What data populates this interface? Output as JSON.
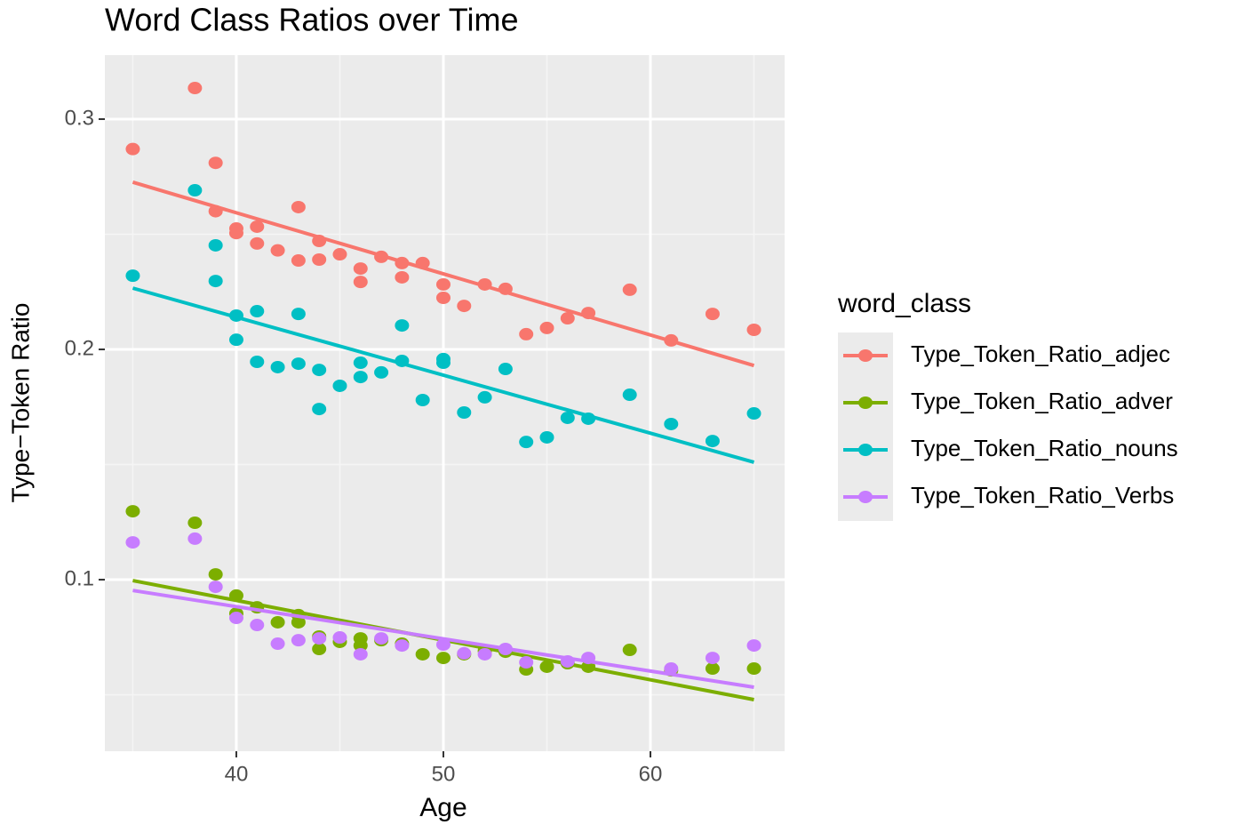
{
  "chart_data": {
    "type": "scatter",
    "title": "Word Class Ratios over Time",
    "x_label": "Age",
    "y_label": "Type−Token Ratio",
    "legend_title": "word_class",
    "legend": "right",
    "grid": true,
    "minor_grid": true,
    "xlim": [
      33.65,
      66.48
    ],
    "xticks": [
      40,
      50,
      60
    ],
    "ylim": [
      0.0255,
      0.3278
    ],
    "yticks": [
      0.1,
      0.2,
      0.3
    ],
    "series": [
      {
        "name": "Type_Token_Ratio_adjec",
        "color": "#F8766D",
        "x": [
          35,
          38,
          39,
          39,
          40,
          40,
          41,
          41,
          42,
          43,
          43,
          44,
          44,
          45,
          46,
          46,
          47,
          48,
          48,
          49,
          50,
          50,
          51,
          52,
          53,
          54,
          55,
          56,
          57,
          59,
          61,
          63,
          65
        ],
        "values": [
          0.287,
          0.3135,
          0.281,
          0.26,
          0.2525,
          0.2505,
          0.2533,
          0.246,
          0.243,
          0.2618,
          0.2386,
          0.2471,
          0.239,
          0.2413,
          0.2351,
          0.2293,
          0.2402,
          0.2375,
          0.2313,
          0.2375,
          0.2282,
          0.2224,
          0.2189,
          0.2282,
          0.2263,
          0.2066,
          0.2093,
          0.2135,
          0.2158,
          0.2259,
          0.2039,
          0.2154,
          0.2085
        ],
        "fit": {
          "x": [
            35,
            65
          ],
          "values": [
            0.2726,
            0.193
          ]
        }
      },
      {
        "name": "Type_Token_Ratio_adver",
        "color": "#7CAE00",
        "x": [
          35,
          38,
          39,
          40,
          40,
          41,
          42,
          43,
          43,
          44,
          44,
          45,
          46,
          46,
          47,
          48,
          49,
          50,
          51,
          52,
          53,
          54,
          55,
          56,
          57,
          59,
          61,
          63,
          65
        ],
        "values": [
          0.1297,
          0.1247,
          0.1023,
          0.0931,
          0.0853,
          0.088,
          0.0815,
          0.0846,
          0.0815,
          0.0753,
          0.0699,
          0.073,
          0.0745,
          0.0714,
          0.0737,
          0.0722,
          0.0676,
          0.066,
          0.0676,
          0.0691,
          0.0687,
          0.061,
          0.0622,
          0.0637,
          0.0622,
          0.0695,
          0.0606,
          0.0614,
          0.0614
        ],
        "fit": {
          "x": [
            35,
            65
          ],
          "values": [
            0.0996,
            0.0479
          ]
        }
      },
      {
        "name": "Type_Token_Ratio_nouns",
        "color": "#00BFC4",
        "x": [
          35,
          38,
          39,
          39,
          40,
          40,
          41,
          41,
          42,
          43,
          43,
          44,
          44,
          45,
          46,
          46,
          47,
          48,
          48,
          49,
          50,
          50,
          51,
          52,
          53,
          54,
          55,
          56,
          57,
          59,
          61,
          63,
          65
        ],
        "values": [
          0.232,
          0.2691,
          0.2452,
          0.2297,
          0.2147,
          0.2042,
          0.2166,
          0.1946,
          0.1923,
          0.2154,
          0.1938,
          0.1911,
          0.1741,
          0.1842,
          0.1942,
          0.188,
          0.19,
          0.2104,
          0.195,
          0.178,
          0.1958,
          0.1942,
          0.1726,
          0.1792,
          0.1915,
          0.1598,
          0.1618,
          0.1703,
          0.1699,
          0.1803,
          0.1676,
          0.1602,
          0.1722
        ],
        "fit": {
          "x": [
            35,
            65
          ],
          "values": [
            0.2266,
            0.151
          ]
        }
      },
      {
        "name": "Type_Token_Ratio_Verbs",
        "color": "#C77CFF",
        "x": [
          35,
          38,
          39,
          40,
          41,
          42,
          43,
          44,
          45,
          46,
          47,
          48,
          50,
          51,
          52,
          53,
          54,
          56,
          57,
          61,
          63,
          65
        ],
        "values": [
          0.1162,
          0.1178,
          0.0969,
          0.0834,
          0.0803,
          0.0722,
          0.0737,
          0.0745,
          0.0749,
          0.0676,
          0.0745,
          0.0714,
          0.0718,
          0.068,
          0.0676,
          0.0699,
          0.0641,
          0.0645,
          0.066,
          0.0614,
          0.066,
          0.0714
        ],
        "fit": {
          "x": [
            35,
            65
          ],
          "values": [
            0.0953,
            0.0533
          ]
        }
      }
    ]
  }
}
